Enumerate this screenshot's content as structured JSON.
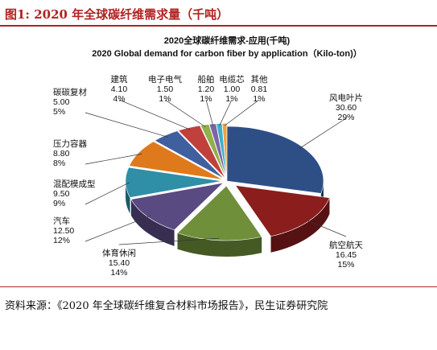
{
  "header": {
    "figure_title": "图1: 2020 年全球碳纤维需求量（千吨）"
  },
  "footer": {
    "source": "资料来源：《2020 年全球碳纤维复合材料市场报告》，民生证券研究院"
  },
  "chart_data": {
    "type": "pie",
    "title_cn": "2020全球碳纤维需求-应用(千吨)",
    "title_en": "2020 Global demand for carbon fiber by application（Kilo-ton)）",
    "slices": [
      {
        "label": "风电叶片",
        "value": "30.60",
        "percent": "29%",
        "color": "#2e4f86"
      },
      {
        "label": "航空航天",
        "value": "16.45",
        "percent": "15%",
        "color": "#8b1d1d"
      },
      {
        "label": "体育休闲",
        "value": "15.40",
        "percent": "14%",
        "color": "#6f8f3a"
      },
      {
        "label": "汽车",
        "value": "12.50",
        "percent": "12%",
        "color": "#5a4a82"
      },
      {
        "label": "混配模成型",
        "value": "9.50",
        "percent": "9%",
        "color": "#2f8fa6"
      },
      {
        "label": "压力容器",
        "value": "8.80",
        "percent": "8%",
        "color": "#df7a1c"
      },
      {
        "label": "碳碳复材",
        "value": "5.00",
        "percent": "5%",
        "color": "#3f5f9f"
      },
      {
        "label": "建筑",
        "value": "4.10",
        "percent": "4%",
        "color": "#c0403c"
      },
      {
        "label": "电子电气",
        "value": "1.50",
        "percent": "1%",
        "color": "#8fb04a"
      },
      {
        "label": "船舶",
        "value": "1.20",
        "percent": "1%",
        "color": "#7a65a6"
      },
      {
        "label": "电缆芯",
        "value": "1.00",
        "percent": "1%",
        "color": "#3fb0c8"
      },
      {
        "label": "其他",
        "value": "0.81",
        "percent": "1%",
        "color": "#f0a040"
      }
    ]
  }
}
